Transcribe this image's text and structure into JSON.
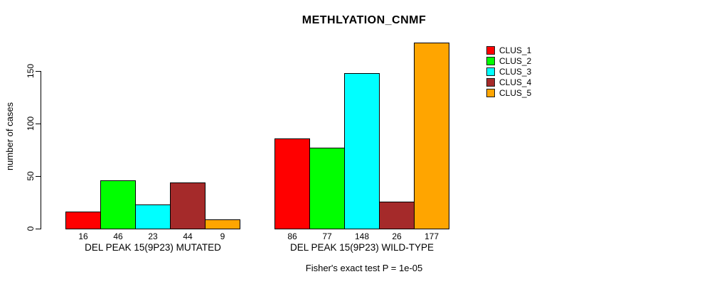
{
  "chart_data": {
    "type": "bar",
    "title": "METHLYATION_CNMF",
    "ylabel": "number of cases",
    "xlabel": "",
    "yticks": [
      0,
      50,
      100,
      150
    ],
    "ylim": [
      0,
      177
    ],
    "grid": false,
    "legend_position": "right",
    "categories": [
      "DEL PEAK 15(9P23) MUTATED",
      "DEL PEAK 15(9P23) WILD-TYPE"
    ],
    "series": [
      {
        "name": "CLUS_1",
        "color": "#ff0000",
        "values": [
          16,
          86
        ]
      },
      {
        "name": "CLUS_2",
        "color": "#00ff00",
        "values": [
          46,
          77
        ]
      },
      {
        "name": "CLUS_3",
        "color": "#00ffff",
        "values": [
          23,
          148
        ]
      },
      {
        "name": "CLUS_4",
        "color": "#a52a2a",
        "values": [
          44,
          26
        ]
      },
      {
        "name": "CLUS_5",
        "color": "#ffa500",
        "values": [
          9,
          177
        ]
      }
    ],
    "bar_value_labels_shown": true,
    "footnote": "Fisher's exact test P = 1e-05"
  },
  "colors": {
    "background": "#ffffff",
    "axis": "#000000",
    "text": "#000000"
  }
}
